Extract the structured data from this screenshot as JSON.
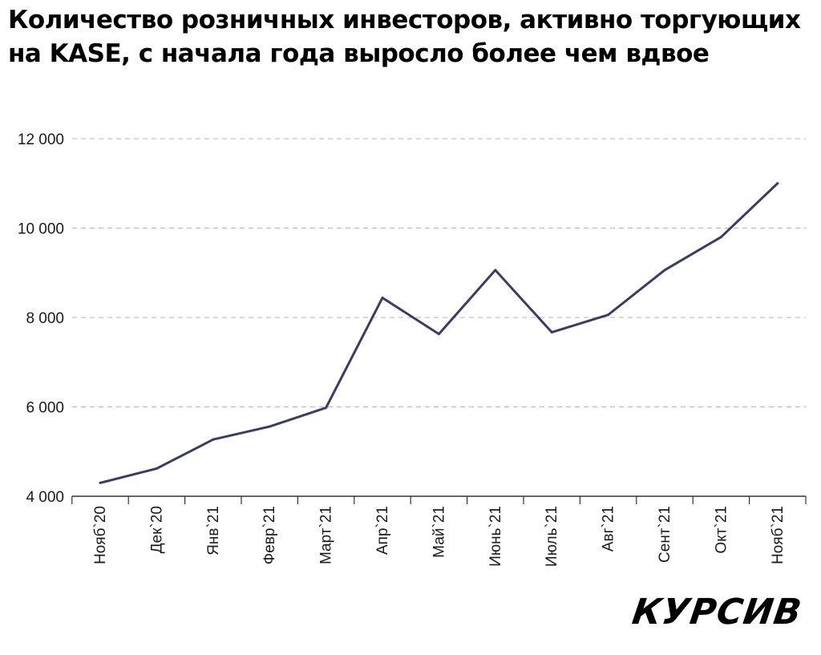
{
  "title": "Количество розничных инвесторов, активно торгующих на KASE, с начала года выросло более чем вдвое",
  "logo": "КУРСИВ",
  "colors": {
    "line": "#3a3d63",
    "grid": "#b5b5b5",
    "axis": "#333333"
  },
  "chart_data": {
    "type": "line",
    "categories": [
      "Нояб`20",
      "Дек`20",
      "Янв`21",
      "Февр`21",
      "Март`21",
      "Апр`21",
      "Май`21",
      "Июнь`21",
      "Июль`21",
      "Авг`21",
      "Сент`21",
      "Окт`21",
      "Нояб`21"
    ],
    "values": [
      4300,
      4620,
      5270,
      5560,
      5980,
      8440,
      7630,
      9060,
      7670,
      8060,
      9060,
      9800,
      11000
    ],
    "ylim": [
      4000,
      12000
    ],
    "yticks": [
      4000,
      6000,
      8000,
      10000,
      12000
    ],
    "ytick_labels": [
      "4 000",
      "6 000",
      "8 000",
      "10 000",
      "12 000"
    ],
    "grid": true,
    "grid_style": "dashed-horizontal",
    "xlabel": "",
    "ylabel": ""
  }
}
